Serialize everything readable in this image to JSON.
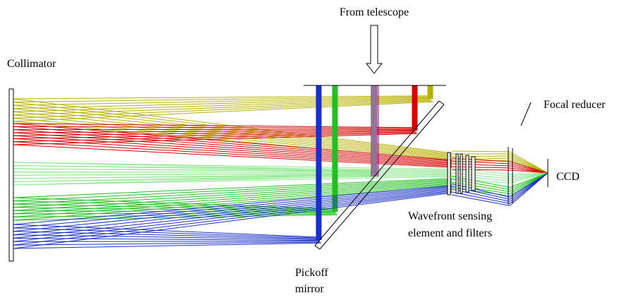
{
  "labels": {
    "telescope": "From telescope",
    "collimator": "Collimator",
    "focal_reducer": "Focal reducer",
    "ccd": "CCD",
    "wavefront": [
      "Wavefront sensing",
      "element and filters"
    ],
    "pickoff": [
      "Pickoff",
      "mirror"
    ]
  }
}
